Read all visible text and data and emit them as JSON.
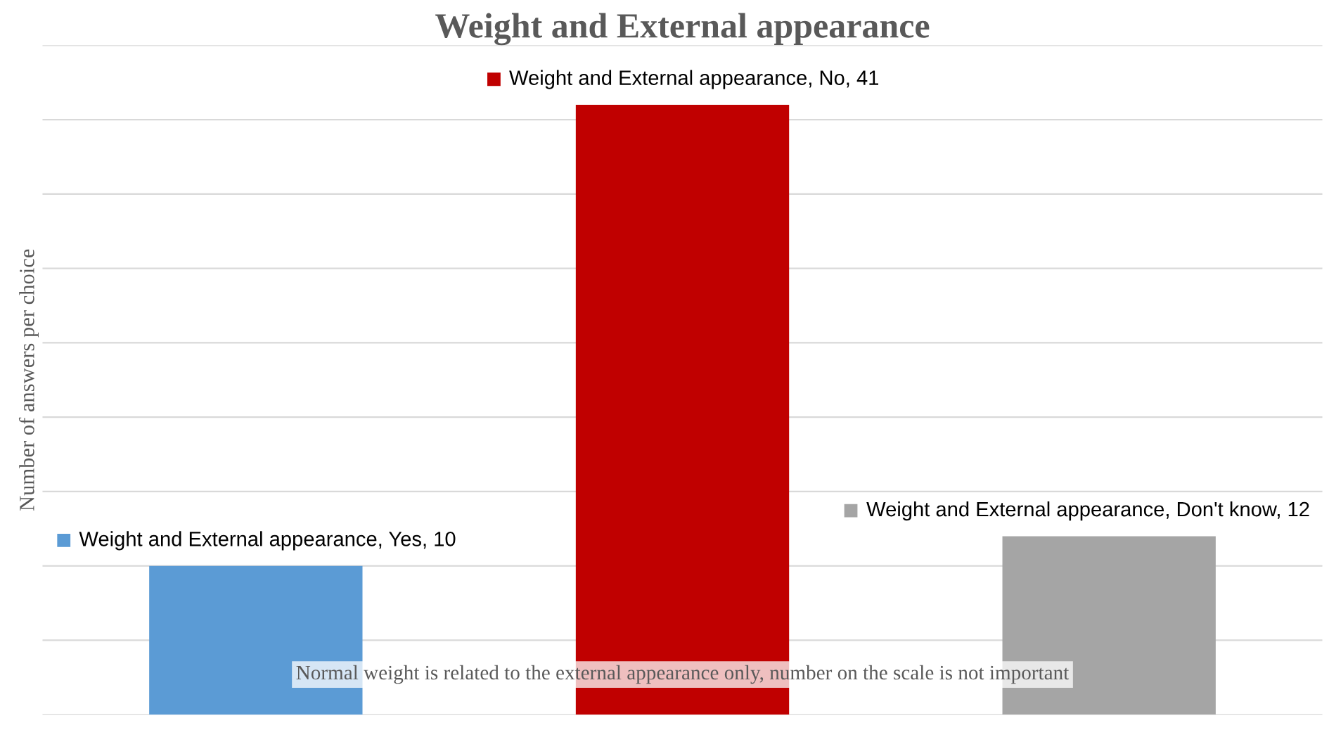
{
  "chart_data": {
    "type": "bar",
    "title": "Weight and External appearance",
    "ylabel": "Number of answers per choice",
    "categories": [
      null,
      null,
      null
    ],
    "values": [
      10,
      41,
      12
    ],
    "colors": [
      "#5b9bd5",
      "#c00000",
      "#a5a5a5"
    ],
    "value_labels": [
      "Weight and External appearance, Yes, 10",
      "Weight and External appearance, No, 41",
      "Weight and External appearance, Don't know, 12"
    ],
    "ylim": [
      0,
      45
    ],
    "yticks": [
      {
        "value": 0,
        "label": null
      },
      {
        "value": 5,
        "label": null
      },
      {
        "value": 10,
        "label": null
      },
      {
        "value": 15,
        "label": null
      },
      {
        "value": 20,
        "label": null
      },
      {
        "value": 25,
        "label": null
      },
      {
        "value": 30,
        "label": null
      },
      {
        "value": 35,
        "label": null
      },
      {
        "value": 40,
        "label": null
      },
      {
        "value": 45,
        "label": null
      }
    ],
    "tick_labels": false,
    "grid": "y",
    "annotations": [
      "Normal weight is related to the external appearance only, number on the scale is not important"
    ]
  }
}
